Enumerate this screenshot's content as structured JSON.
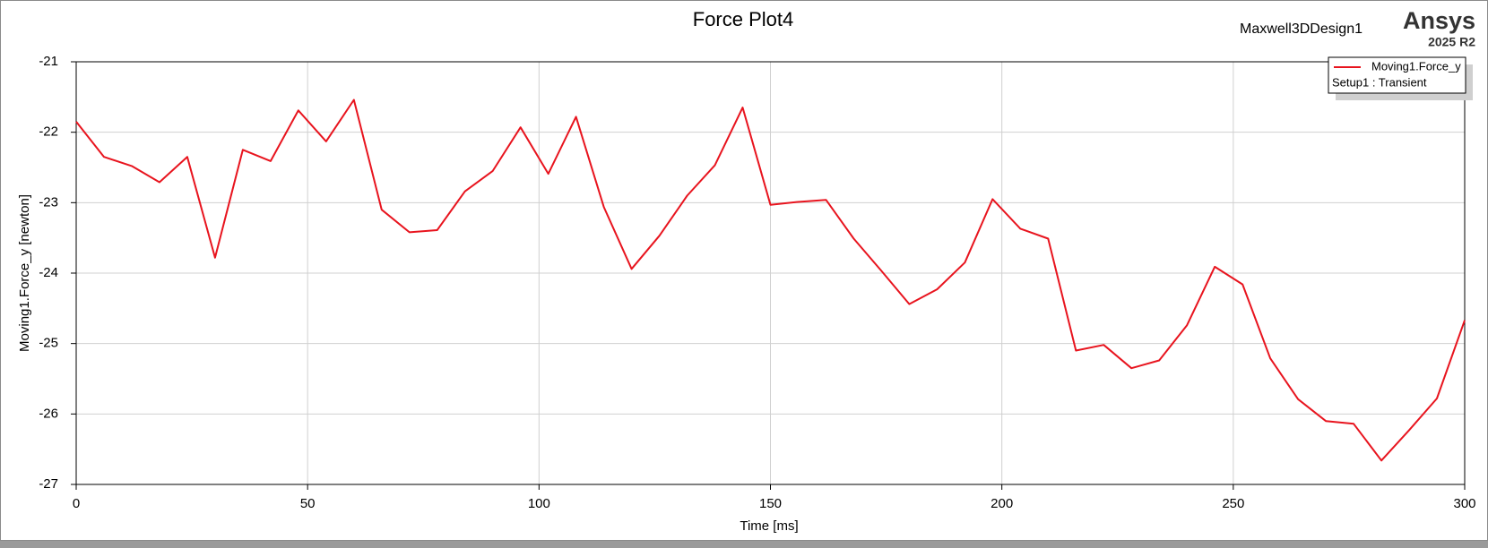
{
  "chart_data": {
    "type": "line",
    "title": "Force Plot4",
    "design": "Maxwell3DDesign1",
    "brand": "Ansys",
    "version": "2025 R2",
    "x_label": "Time [ms]",
    "y_label": "Moving1.Force_y [newton]",
    "x": [
      0,
      6,
      12,
      18,
      24,
      30,
      36,
      42,
      48,
      54,
      60,
      66,
      72,
      78,
      84,
      90,
      96,
      102,
      108,
      114,
      120,
      126,
      132,
      138,
      144,
      150,
      156,
      162,
      168,
      174,
      180,
      186,
      192,
      198,
      204,
      210,
      216,
      222,
      228,
      234,
      240,
      246,
      252,
      258,
      264,
      270,
      276,
      282,
      288,
      294,
      300
    ],
    "series": [
      {
        "name": "Moving1.Force_y",
        "subtitle": "Setup1 : Transient",
        "color": "#e8141e",
        "values": [
          -21.85,
          -22.35,
          -22.48,
          -22.71,
          -22.35,
          -23.78,
          -22.25,
          -22.41,
          -21.69,
          -22.13,
          -21.54,
          -23.1,
          -23.42,
          -23.39,
          -22.84,
          -22.55,
          -21.93,
          -22.59,
          -21.78,
          -23.06,
          -23.94,
          -23.47,
          -22.9,
          -22.47,
          -21.65,
          -23.03,
          -22.99,
          -22.96,
          -23.51,
          -23.97,
          -24.44,
          -24.23,
          -23.85,
          -22.95,
          -23.37,
          -23.51,
          -25.1,
          -25.02,
          -25.35,
          -25.24,
          -24.74,
          -23.91,
          -24.16,
          -25.21,
          -25.79,
          -26.1,
          -26.14,
          -26.66,
          -26.23,
          -25.78,
          -24.67
        ]
      }
    ],
    "xlim": [
      0,
      300
    ],
    "xticks": [
      0,
      50,
      100,
      150,
      200,
      250,
      300
    ],
    "ylim": [
      -27,
      -21
    ],
    "yticks": [
      -21,
      -22,
      -23,
      -24,
      -25,
      -26,
      -27
    ],
    "grid": true
  }
}
